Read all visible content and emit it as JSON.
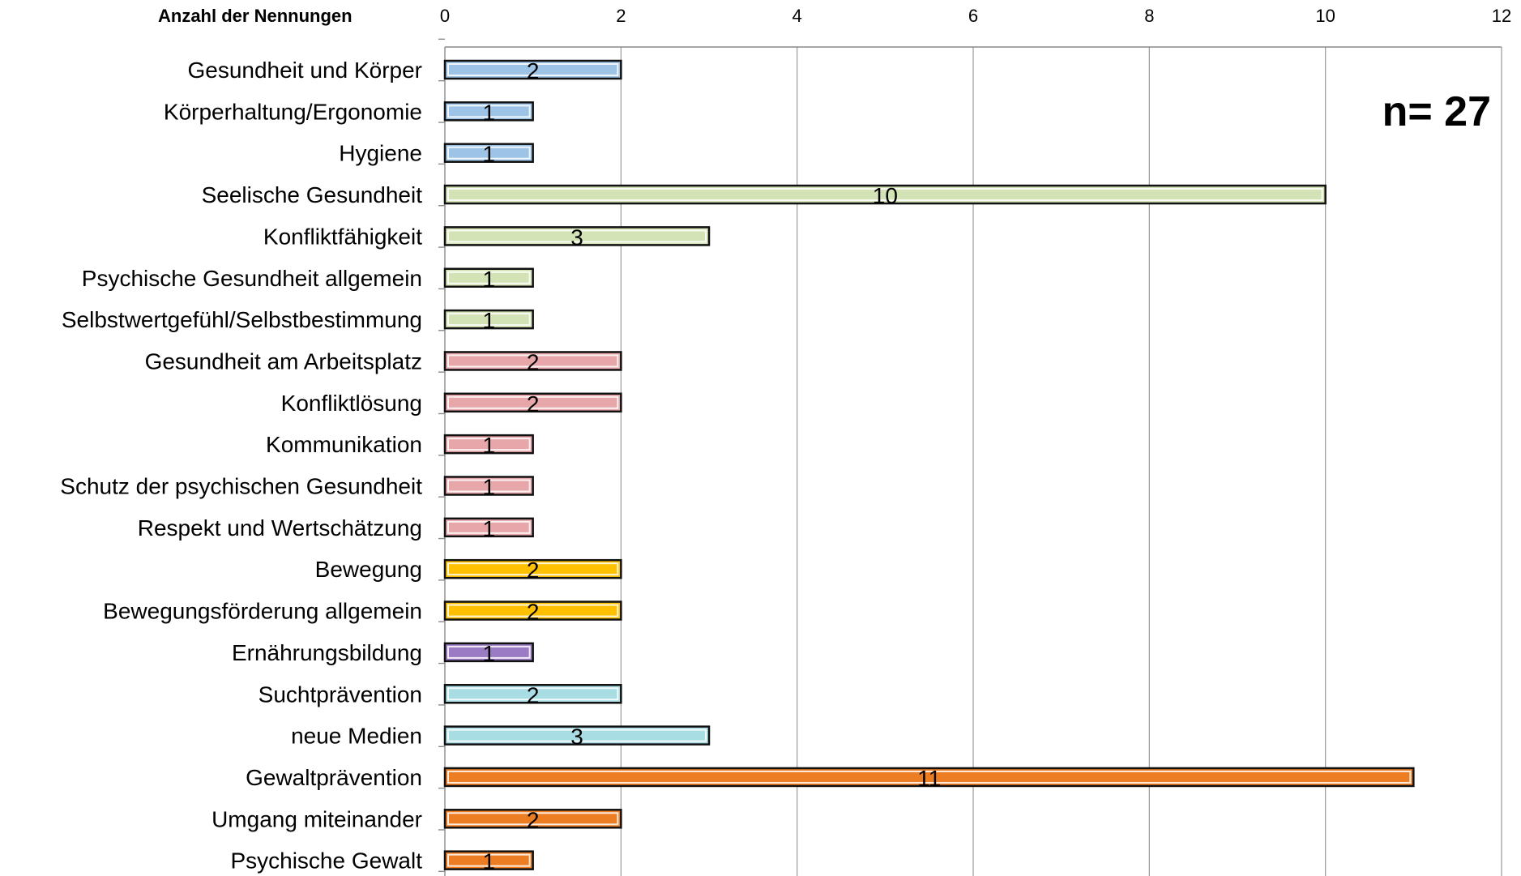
{
  "chart_data": {
    "type": "bar",
    "orientation": "horizontal",
    "xlabel": "Anzahl der Nennungen",
    "xlim": [
      0,
      12
    ],
    "xticks": [
      "0",
      "2",
      "4",
      "6",
      "8",
      "10",
      "12"
    ],
    "grid": true,
    "legend": "none",
    "annotation": "n= 27",
    "categories": [
      "Gesundheit und Körper",
      "Körperhaltung/Ergonomie",
      "Hygiene",
      "Seelische Gesundheit",
      "Konfliktfähigkeit",
      "Psychische Gesundheit allgemein",
      "Selbstwertgefühl/Selbstbestimmung",
      "Gesundheit am Arbeitsplatz",
      "Konfliktlösung",
      "Kommunikation",
      "Schutz der psychischen Gesundheit",
      "Respekt und Wertschätzung",
      "Bewegung",
      "Bewegungsförderung allgemein",
      "Ernährungsbildung",
      "Suchtprävention",
      "neue Medien",
      "Gewaltprävention",
      "Umgang miteinander",
      "Psychische Gewalt"
    ],
    "values": [
      2,
      1,
      1,
      10,
      3,
      1,
      1,
      2,
      2,
      1,
      1,
      1,
      2,
      2,
      1,
      2,
      3,
      11,
      2,
      1
    ],
    "data_labels": [
      "2",
      "1",
      "1",
      "10",
      "3",
      "1",
      "1",
      "2",
      "2",
      "1",
      "1",
      "1",
      "2",
      "2",
      "1",
      "2",
      "3",
      "11",
      "2",
      "1"
    ],
    "bar_colors": [
      "#9dc3e6",
      "#9dc3e6",
      "#9dc3e6",
      "#d4e3b5",
      "#d4e3b5",
      "#d4e3b5",
      "#d4e3b5",
      "#e6a6aa",
      "#e6a6aa",
      "#e6a6aa",
      "#e6a6aa",
      "#e6a6aa",
      "#ffc000",
      "#ffc000",
      "#9b7cc4",
      "#a8dde4",
      "#a8dde4",
      "#ed7d22",
      "#ed7d22",
      "#ed7d22"
    ]
  }
}
